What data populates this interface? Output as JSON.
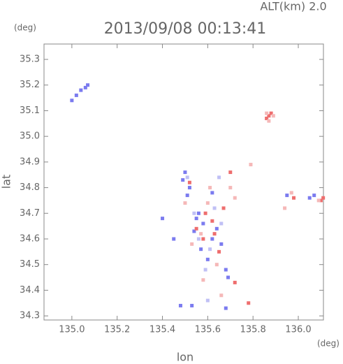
{
  "chart_data": {
    "type": "scatter",
    "title": "2013/09/08 00:13:41",
    "subtitle": "ALT(km) 2.0",
    "y_unit": "(deg)",
    "x_unit": "(deg)",
    "x_label": "lon",
    "y_label": "lat",
    "xlim": [
      134.877,
      136.111
    ],
    "ylim": [
      34.284,
      35.36
    ],
    "xticks": [
      {
        "value": 135.0,
        "label": "135.0"
      },
      135.2,
      135.4,
      135.6,
      135.8,
      {
        "value": 136.0,
        "label": "136.0"
      }
    ],
    "yticks": [
      34.3,
      34.4,
      34.5,
      34.6,
      34.7,
      34.8,
      34.9,
      {
        "value": 35.0,
        "label": "35.0"
      },
      35.1,
      35.2,
      35.3
    ],
    "series": [
      {
        "color": "#7b7bef",
        "x": [
          135.0,
          135.02,
          135.04,
          135.06,
          135.07,
          135.5,
          135.49,
          135.52,
          135.51,
          135.56,
          135.58,
          135.54,
          135.62,
          135.57,
          135.6,
          135.64,
          135.66,
          135.55,
          135.68,
          135.69,
          135.62,
          135.68,
          135.48,
          135.53,
          136.07,
          136.05,
          135.95,
          135.4,
          135.45
        ],
        "values": [
          35.14,
          35.16,
          35.18,
          35.19,
          35.2,
          34.86,
          34.83,
          34.8,
          34.77,
          34.7,
          34.66,
          34.63,
          34.6,
          34.56,
          34.52,
          34.64,
          34.58,
          34.68,
          34.48,
          34.45,
          34.78,
          34.33,
          34.34,
          34.34,
          34.77,
          34.76,
          34.77,
          34.68,
          34.6
        ]
      },
      {
        "color": "#ee6e6e",
        "x": [
          135.87,
          135.88,
          135.86,
          136.1,
          136.11,
          135.72,
          135.58,
          135.62,
          135.55,
          135.65,
          135.67,
          135.7,
          135.78,
          135.52,
          135.63,
          135.59,
          135.98
        ],
        "values": [
          35.08,
          35.09,
          35.07,
          34.75,
          34.76,
          34.43,
          34.6,
          34.67,
          34.64,
          34.55,
          34.72,
          34.86,
          34.35,
          34.82,
          34.62,
          34.7,
          34.76
        ]
      },
      {
        "color": "#f5b8b8",
        "x": [
          135.89,
          135.87,
          135.86,
          136.09,
          135.61,
          135.6,
          135.57,
          135.53,
          135.64,
          135.7,
          135.79,
          135.66,
          135.58,
          135.72,
          135.97,
          135.94,
          135.5
        ],
        "values": [
          35.08,
          35.06,
          35.09,
          34.75,
          34.8,
          34.74,
          34.62,
          34.58,
          34.5,
          34.8,
          34.89,
          34.38,
          34.44,
          34.76,
          34.78,
          34.72,
          34.74
        ]
      },
      {
        "color": "#c0c0f5",
        "x": [
          135.56,
          135.61,
          135.54,
          135.66,
          135.63,
          135.51,
          135.59,
          135.6,
          135.65
        ],
        "values": [
          34.6,
          34.56,
          34.7,
          34.66,
          34.72,
          34.84,
          34.48,
          34.36,
          34.84
        ]
      }
    ]
  }
}
